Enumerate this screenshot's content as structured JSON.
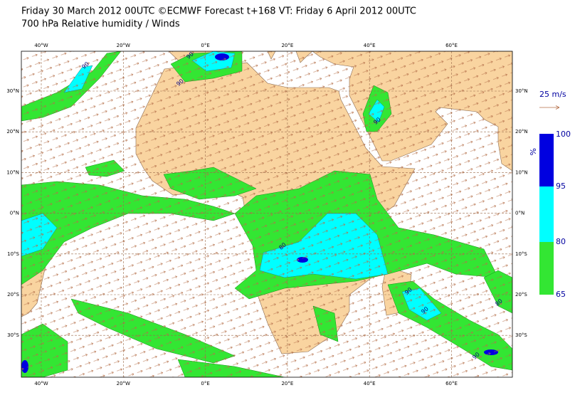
{
  "header": {
    "line1": "Friday 30 March 2012 00UTC ©ECMWF Forecast t+168 VT: Friday 6 April 2012 00UTC",
    "line2": "700 hPa Relative humidity / Winds"
  },
  "map": {
    "lon_labels": [
      "40°W",
      "20°W",
      "0°E",
      "20°E",
      "40°E",
      "60°E"
    ],
    "lat_labels": [
      "30°N",
      "20°N",
      "10°N",
      "0°N",
      "10°S",
      "20°S",
      "30°S"
    ],
    "contour_labels": [
      "90",
      "90",
      "90",
      "90",
      "80",
      "90",
      "90",
      "80",
      "90"
    ]
  },
  "wind_legend": "25 m/s",
  "colorbar": {
    "unit": "%",
    "levels": [
      "100",
      "95",
      "80",
      "65"
    ]
  }
}
